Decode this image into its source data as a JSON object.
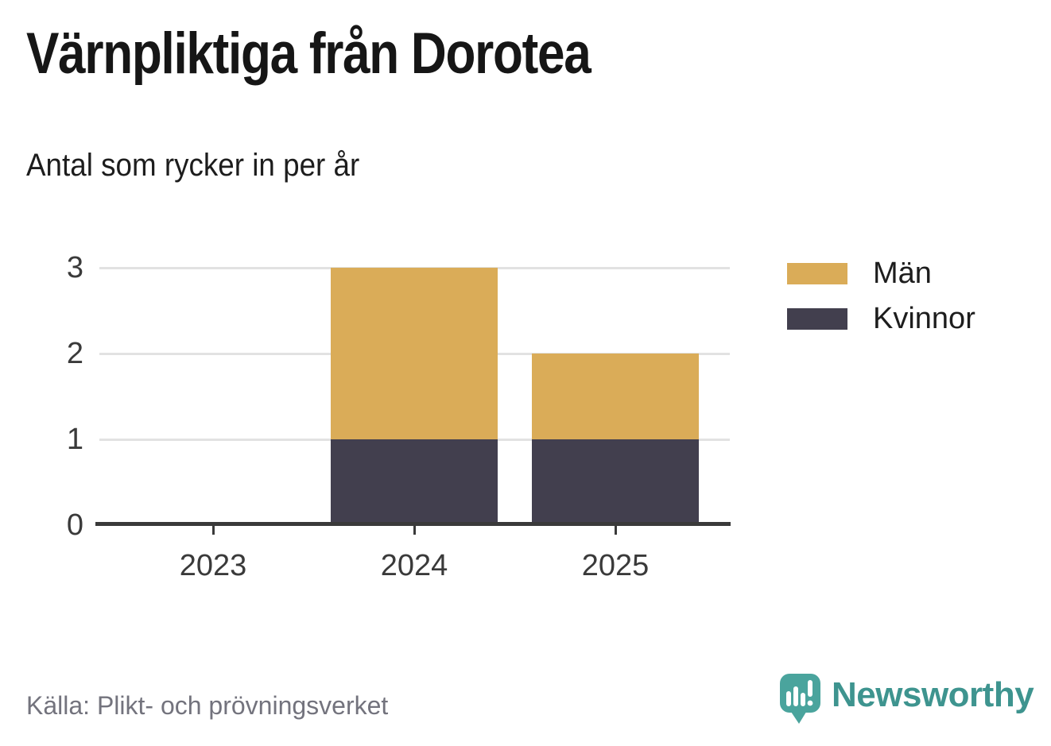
{
  "title": "Värnpliktiga från Dorotea",
  "subtitle": "Antal som rycker in per år",
  "source": "Källa: Plikt- och prövningsverket",
  "branding": {
    "name": "Newsworthy",
    "logo_icon": "speech-bubble-bar-chart-exclamation-icon",
    "wordmark_color": "#3e948f",
    "icon_color": "#4aa49d"
  },
  "colors": {
    "axis": "#3a3a3a",
    "grid": "#e2e2e2",
    "tick_text": "#3a3a3a",
    "source_text": "#73737d",
    "man_gold": "#daac58",
    "kvinnor_dark": "#423f4e"
  },
  "chart_data": {
    "type": "bar",
    "stacked": true,
    "title": "Värnpliktiga från Dorotea",
    "subtitle": "Antal som rycker in per år",
    "categories": [
      "2023",
      "2024",
      "2025"
    ],
    "series": [
      {
        "name": "Kvinnor",
        "color": "#423f4e",
        "values": [
          0,
          1,
          1
        ]
      },
      {
        "name": "Män",
        "color": "#daac58",
        "values": [
          0,
          2,
          1
        ]
      }
    ],
    "totals": [
      0,
      3,
      2
    ],
    "xlabel": "",
    "ylabel": "",
    "ylim": [
      0,
      3
    ],
    "yticks": [
      0,
      1,
      2,
      3
    ],
    "grid": "horizontal",
    "legend_position": "right",
    "legend_order": [
      "Män",
      "Kvinnor"
    ]
  }
}
